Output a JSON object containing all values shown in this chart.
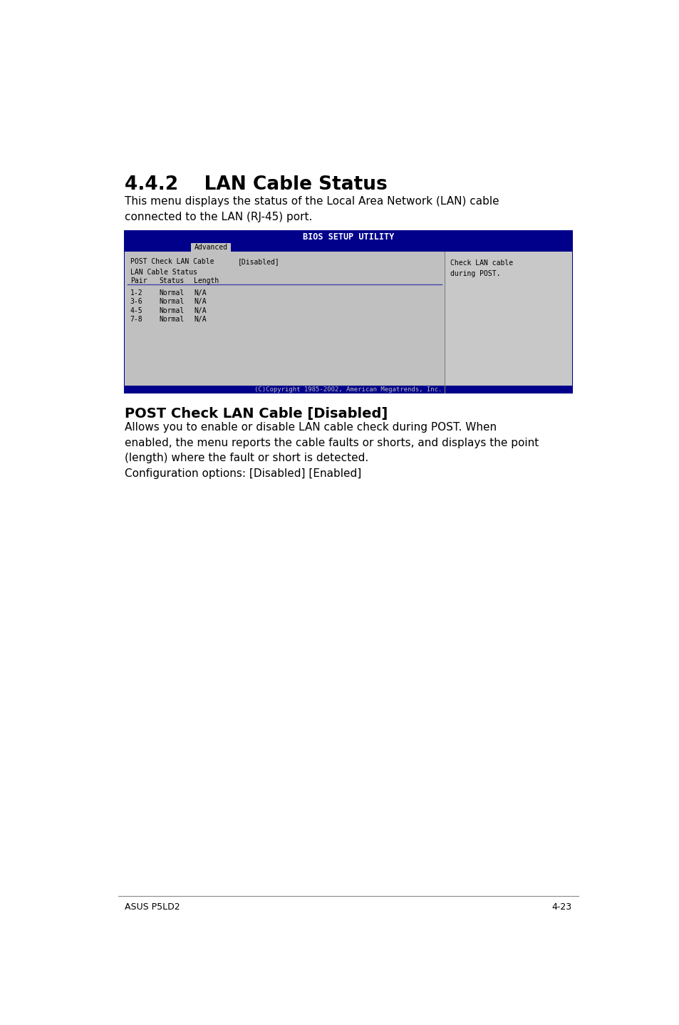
{
  "title": "4.4.2    LAN Cable Status",
  "intro_text": "This menu displays the status of the Local Area Network (LAN) cable\nconnected to the LAN (RJ-45) port.",
  "bios_title": "BIOS SETUP UTILITY",
  "tab_label": "Advanced",
  "bios_bg_color": "#00008B",
  "bios_content_bg": "#BEBEBE",
  "post_check_label": "POST Check LAN Cable",
  "post_check_value": "[Disabled]",
  "lan_status_label": "LAN Cable Status",
  "table_headers": [
    "Pair",
    "Status",
    "Length"
  ],
  "table_rows": [
    [
      "1-2",
      "Normal",
      "N/A"
    ],
    [
      "3-6",
      "Normal",
      "N/A"
    ],
    [
      "4-5",
      "Normal",
      "N/A"
    ],
    [
      "7-8",
      "Normal",
      "N/A"
    ]
  ],
  "right_panel_text": "Check LAN cable\nduring POST.",
  "footer_copyright": "(C)Copyright 1985-2002, American Megatrends, Inc.",
  "section_subtitle": "POST Check LAN Cable [Disabled]",
  "desc_text": "Allows you to enable or disable LAN cable check during POST. When\nenabled, the menu reports the cable faults or shorts, and displays the point\n(length) where the fault or short is detected.\nConfiguration options: [Disabled] [Enabled]",
  "footer_left": "ASUS P5LD2",
  "footer_right": "4-23",
  "page_bg": "#FFFFFF",
  "text_color": "#000000",
  "bios_border_color": "#00008B",
  "divider_line_color": "#4444AA",
  "footer_line_color": "#888888"
}
